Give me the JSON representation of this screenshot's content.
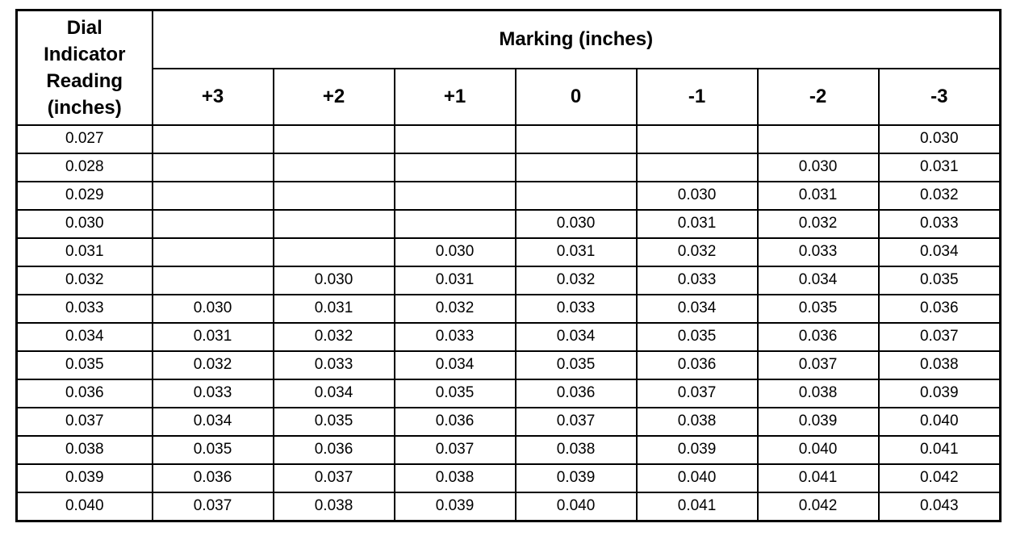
{
  "table": {
    "corner_header": "Dial Indicator Reading (inches)",
    "group_header": "Marking (inches)",
    "columns": [
      "+3",
      "+2",
      "+1",
      "0",
      "-1",
      "-2",
      "-3"
    ],
    "rows": [
      [
        "0.027",
        null,
        null,
        null,
        null,
        null,
        null,
        "0.030"
      ],
      [
        "0.028",
        null,
        null,
        null,
        null,
        null,
        "0.030",
        "0.031"
      ],
      [
        "0.029",
        null,
        null,
        null,
        null,
        "0.030",
        "0.031",
        "0.032"
      ],
      [
        "0.030",
        null,
        null,
        null,
        "0.030",
        "0.031",
        "0.032",
        "0.033"
      ],
      [
        "0.031",
        null,
        null,
        "0.030",
        "0.031",
        "0.032",
        "0.033",
        "0.034"
      ],
      [
        "0.032",
        null,
        "0.030",
        "0.031",
        "0.032",
        "0.033",
        "0.034",
        "0.035"
      ],
      [
        "0.033",
        "0.030",
        "0.031",
        "0.032",
        "0.033",
        "0.034",
        "0.035",
        "0.036"
      ],
      [
        "0.034",
        "0.031",
        "0.032",
        "0.033",
        "0.034",
        "0.035",
        "0.036",
        "0.037"
      ],
      [
        "0.035",
        "0.032",
        "0.033",
        "0.034",
        "0.035",
        "0.036",
        "0.037",
        "0.038"
      ],
      [
        "0.036",
        "0.033",
        "0.034",
        "0.035",
        "0.036",
        "0.037",
        "0.038",
        "0.039"
      ],
      [
        "0.037",
        "0.034",
        "0.035",
        "0.036",
        "0.037",
        "0.038",
        "0.039",
        "0.040"
      ],
      [
        "0.038",
        "0.035",
        "0.036",
        "0.037",
        "0.038",
        "0.039",
        "0.040",
        "0.041"
      ],
      [
        "0.039",
        "0.036",
        "0.037",
        "0.038",
        "0.039",
        "0.040",
        "0.041",
        "0.042"
      ],
      [
        "0.040",
        "0.037",
        "0.038",
        "0.039",
        "0.040",
        "0.041",
        "0.042",
        "0.043"
      ]
    ]
  }
}
